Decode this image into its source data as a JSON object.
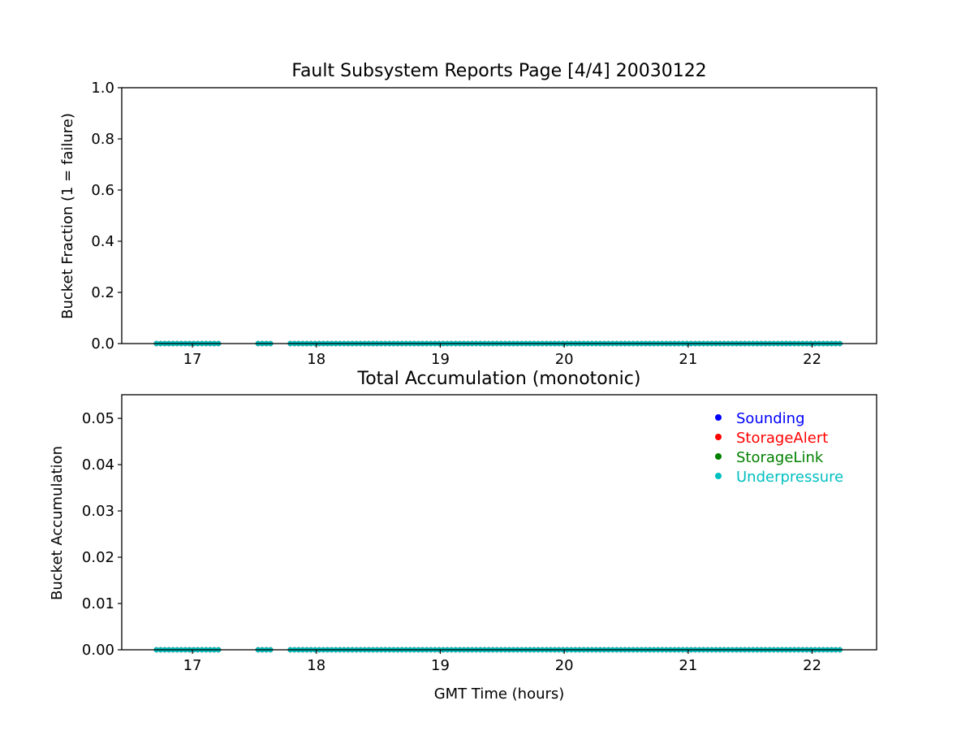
{
  "chart_data": [
    {
      "type": "scatter",
      "title": "Fault Subsystem Reports Page [4/4] 20030122",
      "xlabel": "",
      "ylabel": "Bucket Fraction (1 = failure)",
      "xlim": [
        16.43,
        22.52
      ],
      "ylim": [
        0,
        1.0
      ],
      "xticks": [
        "17",
        "18",
        "19",
        "20",
        "21",
        "22"
      ],
      "yticks": [
        "0.0",
        "0.2",
        "0.4",
        "0.6",
        "0.8",
        "1.0"
      ],
      "grid": false,
      "series": [
        {
          "color": "#0000ff",
          "y": 0,
          "segments": [
            [
              16.71,
              17.24
            ],
            [
              17.53,
              17.66
            ],
            [
              17.79,
              22.25
            ]
          ],
          "step_minutes": 2
        },
        {
          "color": "#ff0000",
          "y": 0,
          "segments": [
            [
              16.71,
              17.24
            ],
            [
              17.53,
              17.66
            ],
            [
              17.79,
              22.25
            ]
          ],
          "step_minutes": 2
        },
        {
          "color": "#008000",
          "y": 0,
          "segments": [
            [
              16.71,
              17.24
            ],
            [
              17.53,
              17.66
            ],
            [
              17.79,
              22.25
            ]
          ],
          "step_minutes": 2
        },
        {
          "color": "#00bfbf",
          "y": 0,
          "segments": [
            [
              16.71,
              17.24
            ],
            [
              17.53,
              17.66
            ],
            [
              17.79,
              22.25
            ]
          ],
          "step_minutes": 2
        }
      ]
    },
    {
      "type": "scatter",
      "title": "Total Accumulation (monotonic)",
      "xlabel": "GMT Time (hours)",
      "ylabel": "Bucket Accumulation",
      "xlim": [
        16.43,
        22.52
      ],
      "ylim": [
        0,
        0.0551
      ],
      "xticks": [
        "17",
        "18",
        "19",
        "20",
        "21",
        "22"
      ],
      "yticks": [
        "0.00",
        "0.01",
        "0.02",
        "0.03",
        "0.04",
        "0.05"
      ],
      "grid": false,
      "legend_position": "upper-right",
      "series": [
        {
          "name": "Sounding",
          "color": "#0000ff",
          "y": 0,
          "segments": [
            [
              16.71,
              17.24
            ],
            [
              17.53,
              17.66
            ],
            [
              17.79,
              22.25
            ]
          ],
          "step_minutes": 2
        },
        {
          "name": "StorageAlert",
          "color": "#ff0000",
          "y": 0,
          "segments": [
            [
              16.71,
              17.24
            ],
            [
              17.53,
              17.66
            ],
            [
              17.79,
              22.25
            ]
          ],
          "step_minutes": 2
        },
        {
          "name": "StorageLink",
          "color": "#008000",
          "y": 0,
          "segments": [
            [
              16.71,
              17.24
            ],
            [
              17.53,
              17.66
            ],
            [
              17.79,
              22.25
            ]
          ],
          "step_minutes": 2
        },
        {
          "name": "Underpressure",
          "color": "#00bfbf",
          "y": 0,
          "segments": [
            [
              16.71,
              17.24
            ],
            [
              17.53,
              17.66
            ],
            [
              17.79,
              22.25
            ]
          ],
          "step_minutes": 2
        }
      ]
    }
  ]
}
